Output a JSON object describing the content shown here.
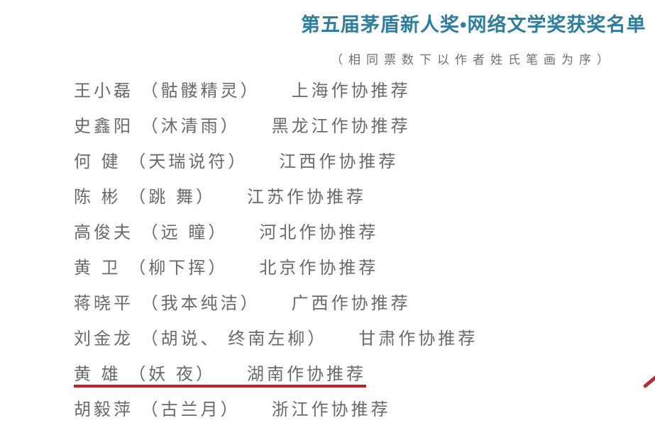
{
  "document": {
    "title": "第五届茅盾新人奖•网络文学奖获奖名单",
    "subtitle": "（相同票数下以作者姓氏笔画为序）"
  },
  "colors": {
    "title_teal": "#2e7e9e",
    "body_gray": "#6a6a6a",
    "annotation_red": "#c32127"
  },
  "winners": [
    {
      "left": "王小磊 （骷髅精灵）",
      "right": "上海作协推荐"
    },
    {
      "left": "史鑫阳 （沐清雨）",
      "right": "黑龙江作协推荐"
    },
    {
      "left": "何 健 （天瑞说符）",
      "right": "江西作协推荐"
    },
    {
      "left": "陈 彬 （跳 舞）",
      "right": "江苏作协推荐"
    },
    {
      "left": "高俊夫 （远 瞳）",
      "right": "河北作协推荐"
    },
    {
      "left": "黄 卫 （柳下挥）",
      "right": "北京作协推荐"
    },
    {
      "left": "蒋晓平 （我本纯洁）",
      "right": "广西作协推荐"
    },
    {
      "left": "刘金龙 （胡说、 终南左柳）",
      "right": "甘肃作协推荐"
    },
    {
      "left": "黄 雄 （妖 夜）",
      "right": "湖南作协推荐"
    },
    {
      "left": "胡毅萍 （古兰月）",
      "right": "浙江作协推荐"
    }
  ],
  "annotations": {
    "underlined_row_index": 8,
    "pen_stroke": "partial red pen stroke at right edge"
  }
}
